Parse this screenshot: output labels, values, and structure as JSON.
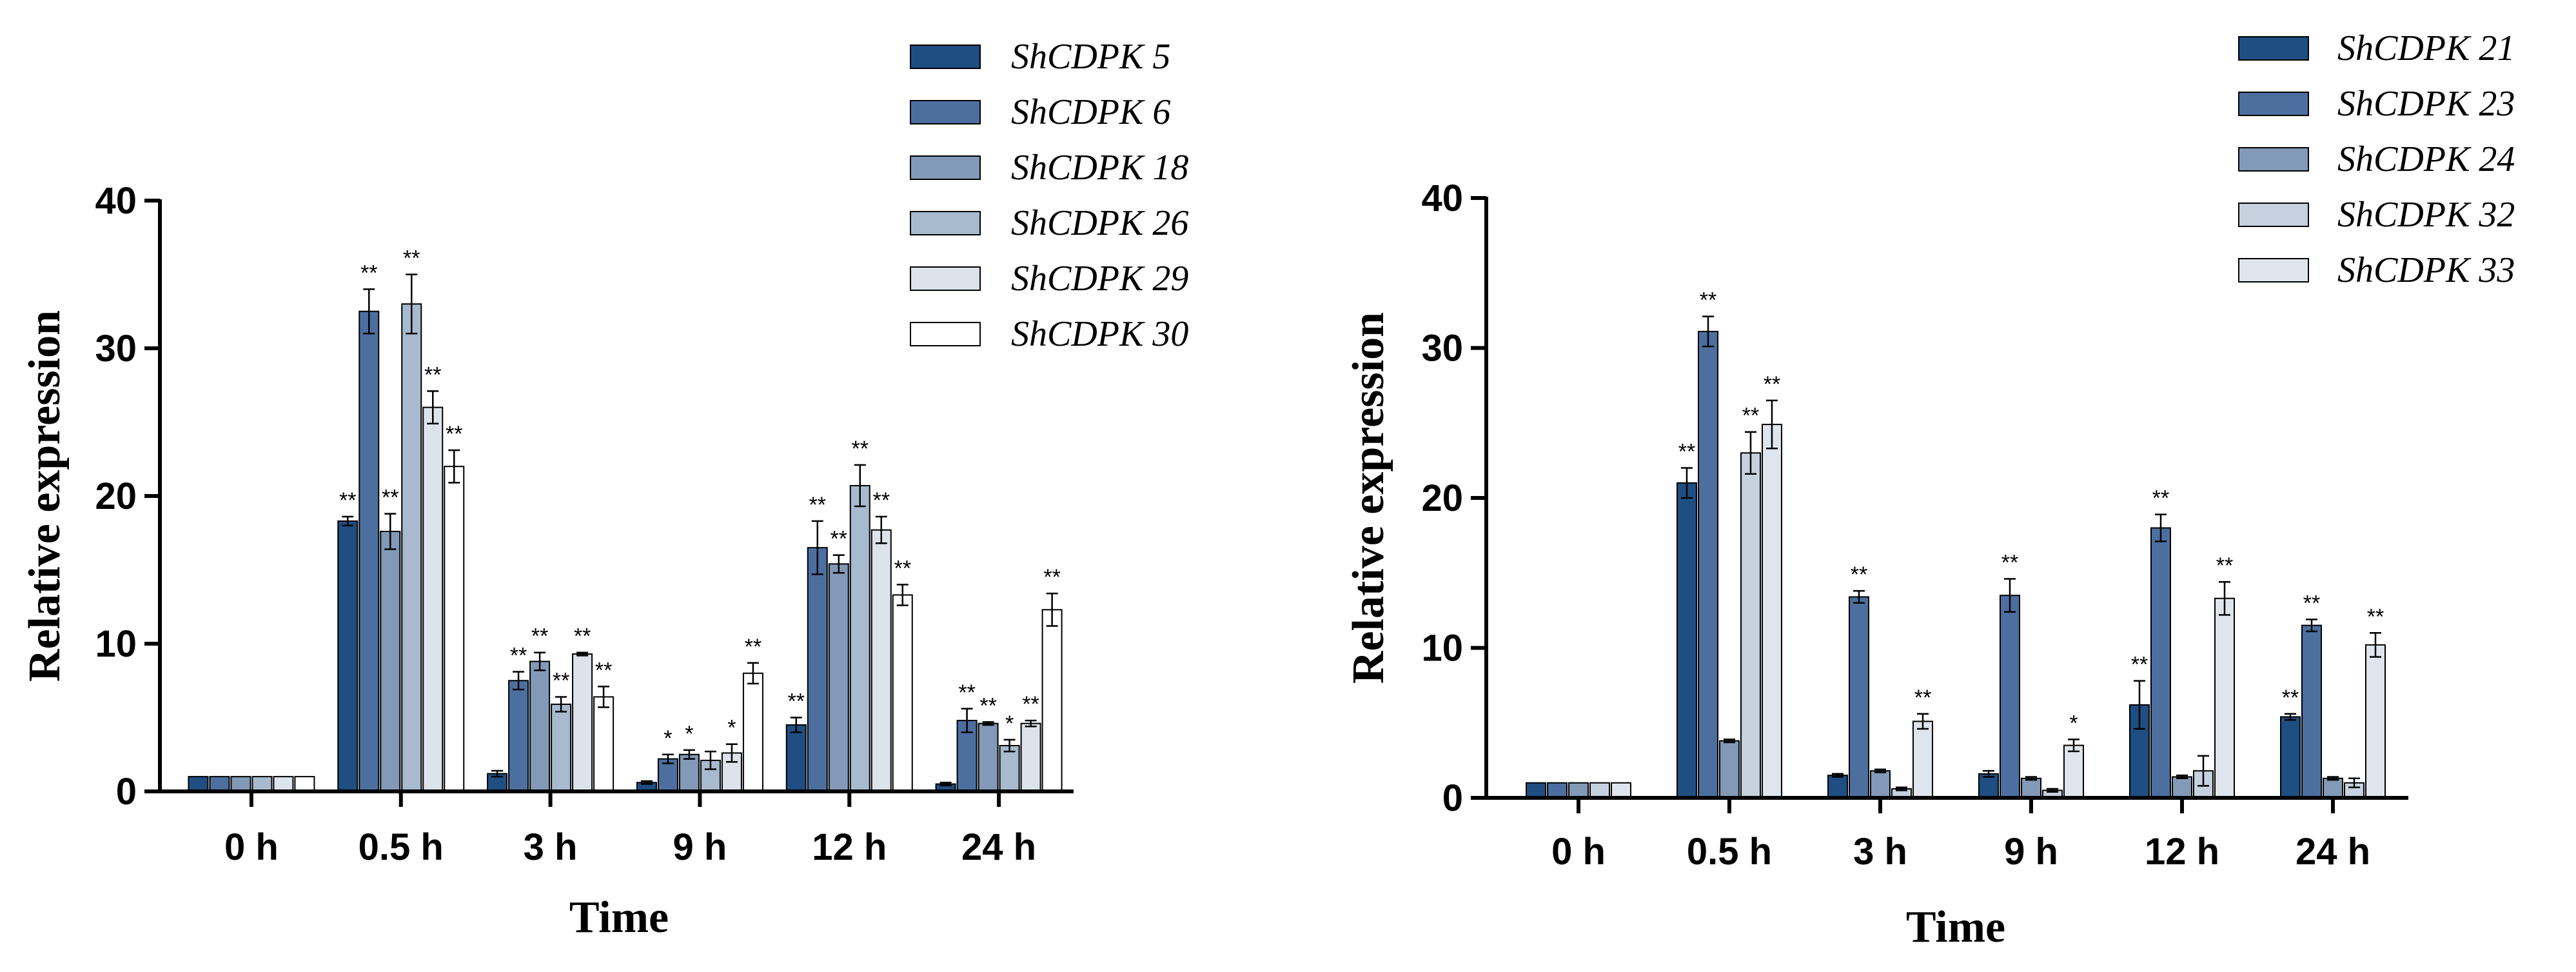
{
  "chart_data": [
    {
      "type": "bar",
      "title": "",
      "xlabel": "Time",
      "ylabel": "Relative expression",
      "ylim": [
        0,
        40
      ],
      "yticks": [
        0,
        10,
        20,
        30,
        40
      ],
      "categories": [
        "0 h",
        "0.5 h",
        "3 h",
        "9 h",
        "12 h",
        "24 h"
      ],
      "legend_position": "top-right",
      "series": [
        {
          "name": "ShCDPK 5",
          "color": "#1f4e82",
          "values": [
            1.0,
            18.3,
            1.2,
            0.6,
            4.5,
            0.5
          ],
          "errors": [
            0.0,
            0.3,
            0.2,
            0.1,
            0.5,
            0.1
          ],
          "sig": [
            "",
            "**",
            "",
            "",
            "**",
            ""
          ]
        },
        {
          "name": "ShCDPK 6",
          "color": "#4c6fa0",
          "values": [
            1.0,
            32.5,
            7.5,
            2.2,
            16.5,
            4.8
          ],
          "errors": [
            0.0,
            1.5,
            0.6,
            0.3,
            1.8,
            0.8
          ],
          "sig": [
            "",
            "**",
            "**",
            "*",
            "**",
            "**"
          ]
        },
        {
          "name": "ShCDPK 18",
          "color": "#8299b7",
          "values": [
            1.0,
            17.6,
            8.8,
            2.5,
            15.4,
            4.6
          ],
          "errors": [
            0.0,
            1.2,
            0.6,
            0.3,
            0.6,
            0.1
          ],
          "sig": [
            "",
            "**",
            "**",
            "*",
            "**",
            "**"
          ]
        },
        {
          "name": "ShCDPK 26",
          "color": "#a8bacd",
          "values": [
            1.0,
            33.0,
            5.9,
            2.1,
            20.7,
            3.1
          ],
          "errors": [
            0.0,
            2.0,
            0.5,
            0.6,
            1.4,
            0.4
          ],
          "sig": [
            "",
            "**",
            "**",
            "",
            "**",
            "*"
          ]
        },
        {
          "name": "ShCDPK 29",
          "color": "#dde3eb",
          "values": [
            1.0,
            26.0,
            9.3,
            2.6,
            17.7,
            4.6
          ],
          "errors": [
            0.0,
            1.1,
            0.1,
            0.6,
            0.9,
            0.2
          ],
          "sig": [
            "",
            "**",
            "**",
            "*",
            "**",
            "**"
          ]
        },
        {
          "name": "ShCDPK 30",
          "color": "#ffffff",
          "values": [
            1.0,
            22.0,
            6.4,
            8.0,
            13.3,
            12.3
          ],
          "errors": [
            0.0,
            1.1,
            0.7,
            0.7,
            0.7,
            1.1
          ],
          "sig": [
            "",
            "**",
            "**",
            "**",
            "**",
            "**"
          ]
        }
      ]
    },
    {
      "type": "bar",
      "title": "",
      "xlabel": "Time",
      "ylabel": "Relative expression",
      "ylim": [
        0,
        40
      ],
      "yticks": [
        0,
        10,
        20,
        30,
        40
      ],
      "categories": [
        "0 h",
        "0.5 h",
        "3 h",
        "9 h",
        "12 h",
        "24 h"
      ],
      "legend_position": "top-right",
      "series": [
        {
          "name": "ShCDPK 21",
          "color": "#1f4e82",
          "values": [
            1.0,
            21.0,
            1.5,
            1.6,
            6.2,
            5.4
          ],
          "errors": [
            0.0,
            1.0,
            0.1,
            0.2,
            1.6,
            0.2
          ],
          "sig": [
            "",
            "**",
            "",
            "",
            "**",
            "**"
          ]
        },
        {
          "name": "ShCDPK 23",
          "color": "#4c6fa0",
          "values": [
            1.0,
            31.1,
            13.4,
            13.5,
            18.0,
            11.5
          ],
          "errors": [
            0.0,
            1.0,
            0.4,
            1.1,
            0.9,
            0.4
          ],
          "sig": [
            "",
            "**",
            "**",
            "**",
            "**",
            "**"
          ]
        },
        {
          "name": "ShCDPK 24",
          "color": "#8299b7",
          "values": [
            1.0,
            3.8,
            1.8,
            1.3,
            1.4,
            1.3
          ],
          "errors": [
            0.0,
            0.1,
            0.1,
            0.1,
            0.1,
            0.1
          ],
          "sig": [
            "",
            "",
            "",
            "",
            "",
            ""
          ]
        },
        {
          "name": "ShCDPK 32",
          "color": "#c5d1de",
          "values": [
            1.0,
            23.0,
            0.6,
            0.5,
            1.8,
            1.0
          ],
          "errors": [
            0.0,
            1.4,
            0.1,
            0.1,
            1.0,
            0.3
          ],
          "sig": [
            "",
            "**",
            "",
            "",
            "",
            ""
          ]
        },
        {
          "name": "ShCDPK 33",
          "color": "#dfe5ec",
          "values": [
            1.0,
            24.9,
            5.1,
            3.5,
            13.3,
            10.2
          ],
          "errors": [
            0.0,
            1.6,
            0.5,
            0.4,
            1.1,
            0.8
          ],
          "sig": [
            "",
            "**",
            "**",
            "*",
            "**",
            "**"
          ]
        }
      ]
    }
  ]
}
